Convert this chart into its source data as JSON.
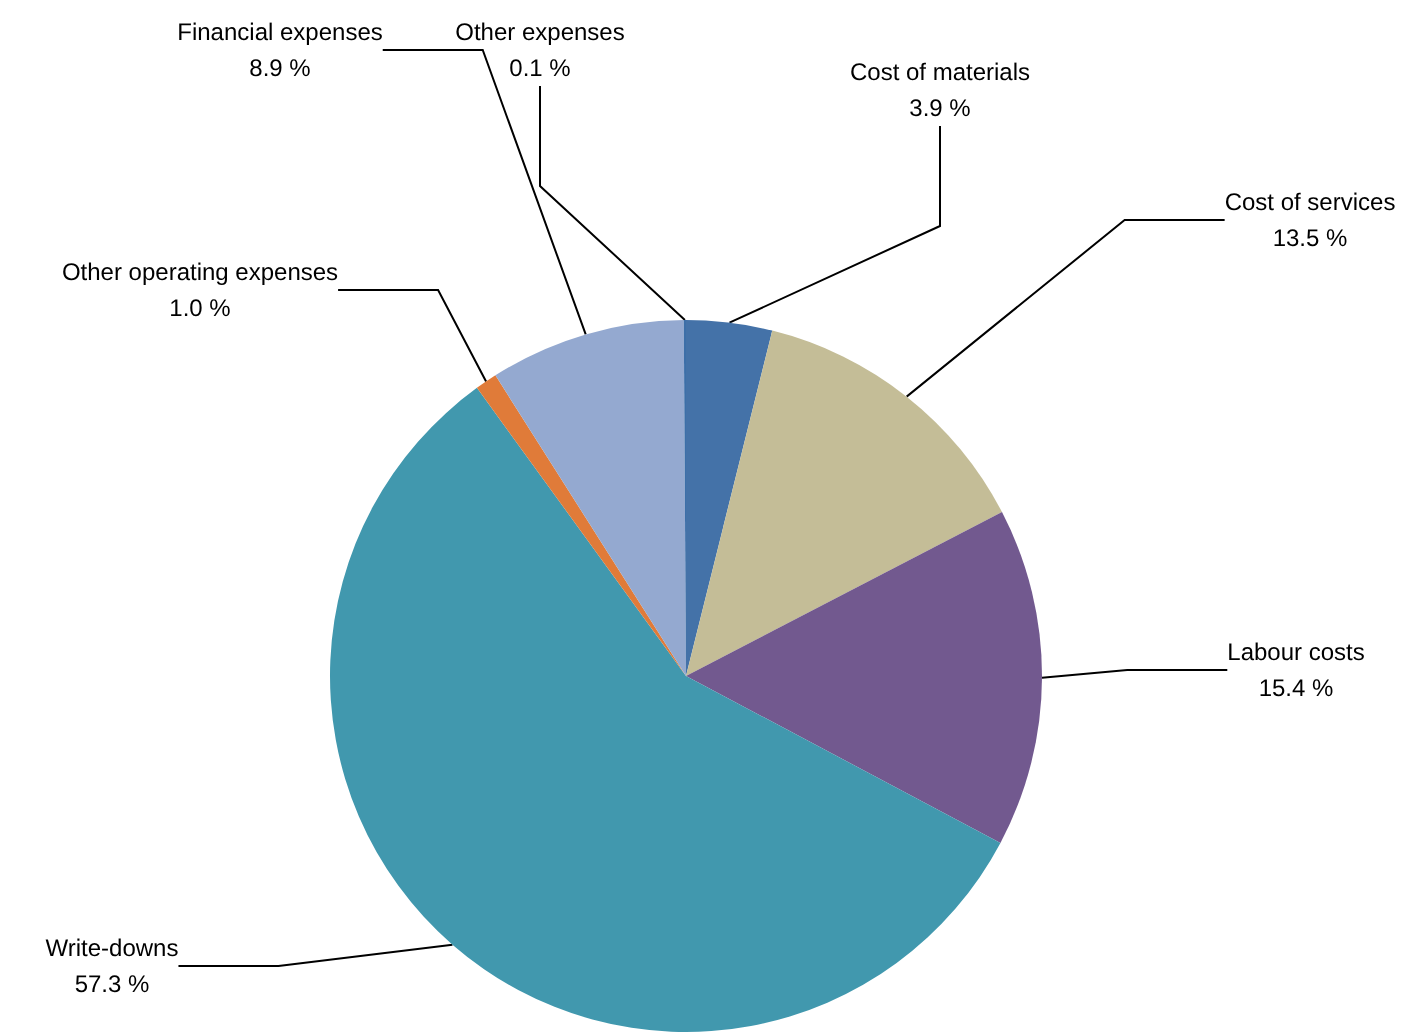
{
  "chart_data": {
    "type": "pie",
    "categories": [
      "Cost of materials",
      "Cost of services",
      "Labour costs",
      "Write-downs",
      "Other operating expenses",
      "Financial expenses",
      "Other expenses"
    ],
    "values": [
      3.9,
      13.5,
      15.4,
      57.3,
      1.0,
      8.9,
      0.1
    ],
    "value_labels": [
      "3.9 %",
      "13.5 %",
      "15.4 %",
      "57.3 %",
      "1.0 %",
      "8.9 %",
      "0.1 %"
    ],
    "colors": [
      "#4472a8",
      "#c4bd97",
      "#72598f",
      "#4198ae",
      "#e07b39",
      "#94a9d0",
      "#3d6fa8"
    ]
  }
}
